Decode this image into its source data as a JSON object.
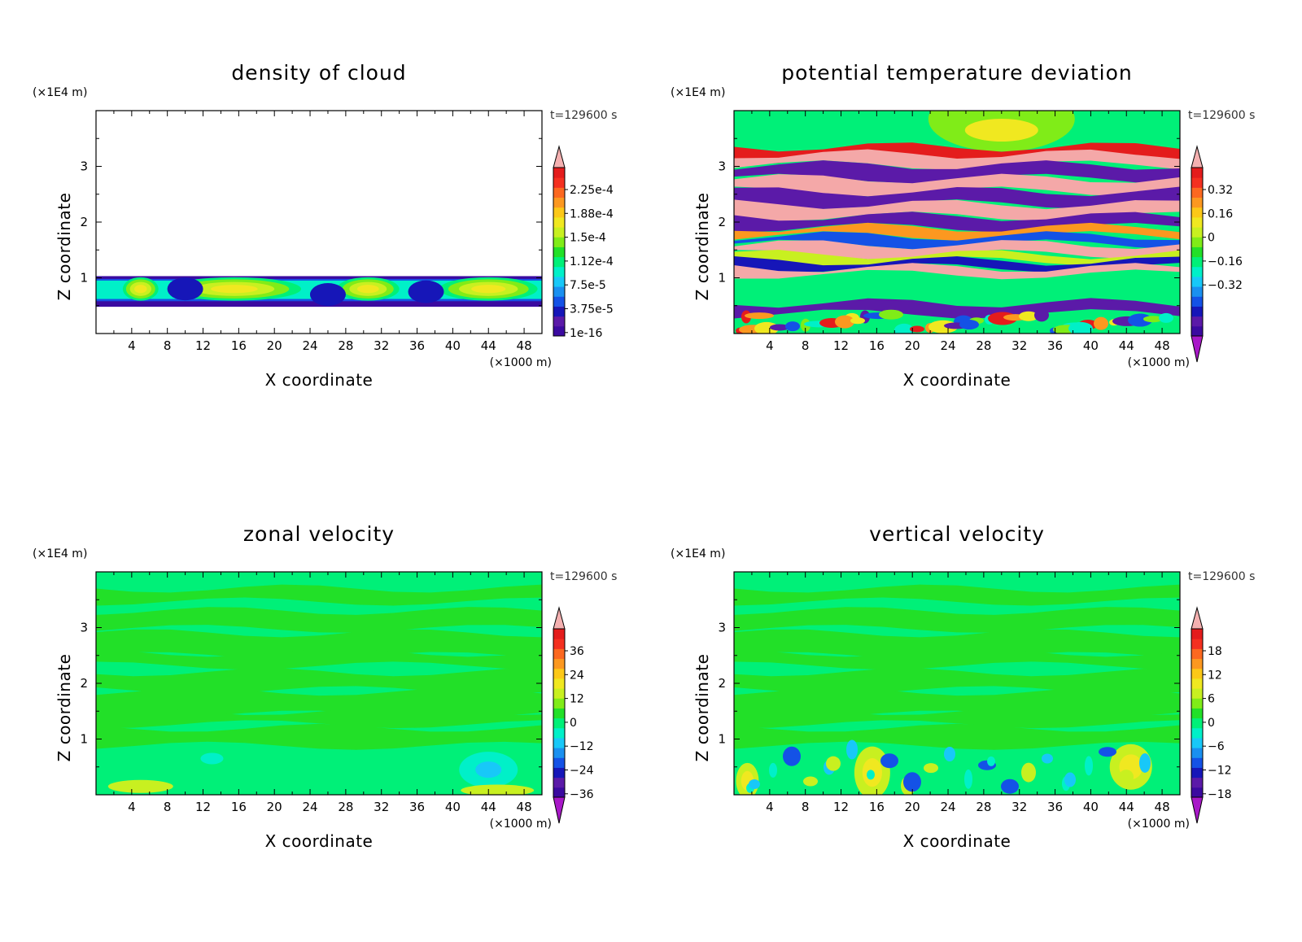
{
  "chart_data": [
    {
      "type": "heatmap",
      "title": "density of cloud",
      "xlabel": "X coordinate",
      "ylabel": "Z coordinate",
      "x_unit": "(×1000 m)",
      "y_unit": "(×1E4 m)",
      "time_label": "t=129600 s",
      "xlim": [
        0,
        50
      ],
      "ylim": [
        0,
        4
      ],
      "x_ticks": [
        "4",
        "8",
        "12",
        "16",
        "20",
        "24",
        "28",
        "32",
        "36",
        "40",
        "44",
        "48"
      ],
      "y_ticks": [
        "1",
        "2",
        "3"
      ],
      "colorbar": {
        "labels": [
          "2.25e-4",
          "1.88e-4",
          "1.5e-4",
          "1.12e-4",
          "7.5e-5",
          "3.75e-5",
          "1e-16"
        ],
        "lower_arrow": false,
        "upper_arrow": true
      }
    },
    {
      "type": "heatmap",
      "title": "potential temperature deviation",
      "xlabel": "X coordinate",
      "ylabel": "Z coordinate",
      "x_unit": "(×1000 m)",
      "y_unit": "(×1E4 m)",
      "time_label": "t=129600 s",
      "xlim": [
        0,
        50
      ],
      "ylim": [
        0,
        4
      ],
      "x_ticks": [
        "4",
        "8",
        "12",
        "16",
        "20",
        "24",
        "28",
        "32",
        "36",
        "40",
        "44",
        "48"
      ],
      "y_ticks": [
        "1",
        "2",
        "3"
      ],
      "colorbar": {
        "labels": [
          "0.32",
          "0.16",
          "0",
          "−0.16",
          "−0.32"
        ],
        "lower_arrow": true,
        "upper_arrow": true
      }
    },
    {
      "type": "heatmap",
      "title": "zonal velocity",
      "xlabel": "X coordinate",
      "ylabel": "Z coordinate",
      "x_unit": "(×1000 m)",
      "y_unit": "(×1E4 m)",
      "time_label": "t=129600 s",
      "xlim": [
        0,
        50
      ],
      "ylim": [
        0,
        4
      ],
      "x_ticks": [
        "4",
        "8",
        "12",
        "16",
        "20",
        "24",
        "28",
        "32",
        "36",
        "40",
        "44",
        "48"
      ],
      "y_ticks": [
        "1",
        "2",
        "3"
      ],
      "colorbar": {
        "labels": [
          "36",
          "24",
          "12",
          "0",
          "−12",
          "−24",
          "−36"
        ],
        "lower_arrow": true,
        "upper_arrow": true
      }
    },
    {
      "type": "heatmap",
      "title": "vertical velocity",
      "xlabel": "X coordinate",
      "ylabel": "Z coordinate",
      "x_unit": "(×1000 m)",
      "y_unit": "(×1E4 m)",
      "time_label": "t=129600 s",
      "xlim": [
        0,
        50
      ],
      "ylim": [
        0,
        4
      ],
      "x_ticks": [
        "4",
        "8",
        "12",
        "16",
        "20",
        "24",
        "28",
        "32",
        "36",
        "40",
        "44",
        "48"
      ],
      "y_ticks": [
        "1",
        "2",
        "3"
      ],
      "colorbar": {
        "labels": [
          "18",
          "12",
          "6",
          "0",
          "−6",
          "−12",
          "−18"
        ],
        "lower_arrow": true,
        "upper_arrow": true
      }
    }
  ]
}
